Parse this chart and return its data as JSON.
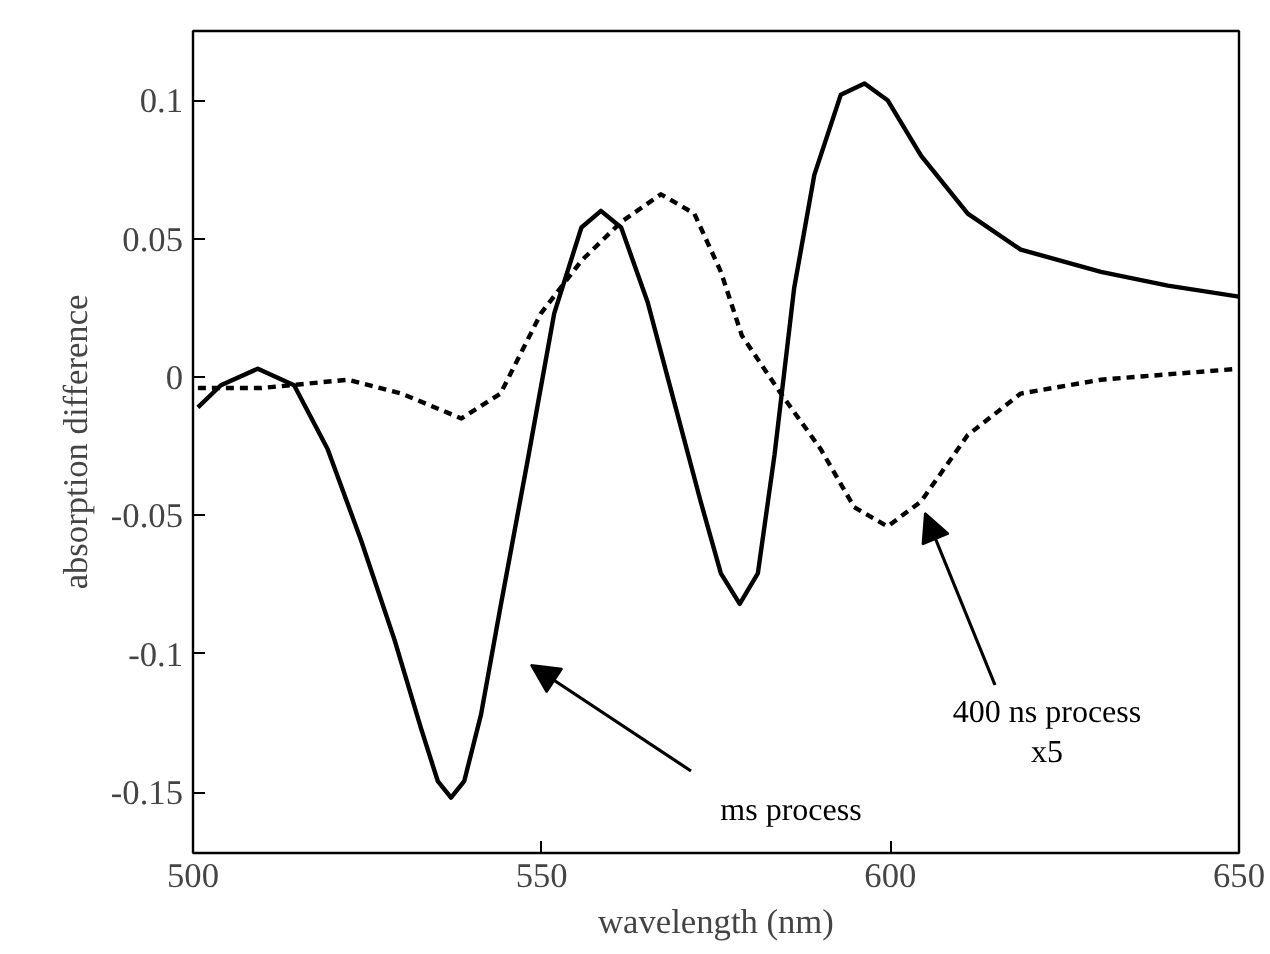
{
  "chart_data": {
    "type": "line",
    "xlabel": "wavelength (nm)",
    "ylabel": "absorption difference",
    "xlim": [
      500,
      650
    ],
    "ylim": [
      -0.172,
      0.125
    ],
    "xticks": [
      500,
      550,
      600,
      650
    ],
    "yticks": [
      -0.15,
      -0.1,
      -0.05,
      0,
      0.05,
      0.1
    ],
    "grid": false,
    "marker": "none",
    "series": [
      {
        "color": "#000000",
        "line_style": "solid",
        "x": [
          500.7,
          504,
          509.3,
          514.5,
          519.3,
          524.1,
          528.9,
          532.7,
          535.1,
          537,
          538.9,
          541.3,
          544.1,
          548,
          551.8,
          555.7,
          558.5,
          561.4,
          565.2,
          569,
          572.8,
          575.7,
          578.4,
          581,
          583.4,
          586.2,
          589.1,
          592.9,
          596.3,
          599.6,
          604.4,
          611.1,
          618.7,
          630.2,
          639.8,
          650
        ],
        "values": [
          -0.011,
          -0.003,
          0.003,
          -0.003,
          -0.026,
          -0.059,
          -0.095,
          -0.127,
          -0.146,
          -0.152,
          -0.146,
          -0.122,
          -0.083,
          -0.03,
          0.023,
          0.054,
          0.06,
          0.054,
          0.027,
          -0.009,
          -0.045,
          -0.071,
          -0.082,
          -0.071,
          -0.028,
          0.032,
          0.073,
          0.102,
          0.106,
          0.1,
          0.08,
          0.059,
          0.046,
          0.038,
          0.033,
          0.029
        ]
      },
      {
        "color": "#000000",
        "line_style": "dashed",
        "x": [
          500.7,
          509.8,
          522.2,
          529.9,
          538.5,
          544.1,
          549.9,
          555.7,
          561.4,
          567.1,
          571.9,
          575.7,
          578.7,
          584.3,
          590,
          594.8,
          599.6,
          604.4,
          611.1,
          618.7,
          630.2,
          650
        ],
        "values": [
          -0.004,
          -0.004,
          -0.001,
          -0.006,
          -0.015,
          -0.006,
          0.023,
          0.042,
          0.056,
          0.066,
          0.059,
          0.038,
          0.015,
          -0.006,
          -0.026,
          -0.047,
          -0.054,
          -0.045,
          -0.021,
          -0.006,
          -0.001,
          0.003
        ]
      }
    ],
    "annotations": [
      "ms process",
      "400 ns process\nx5"
    ]
  }
}
